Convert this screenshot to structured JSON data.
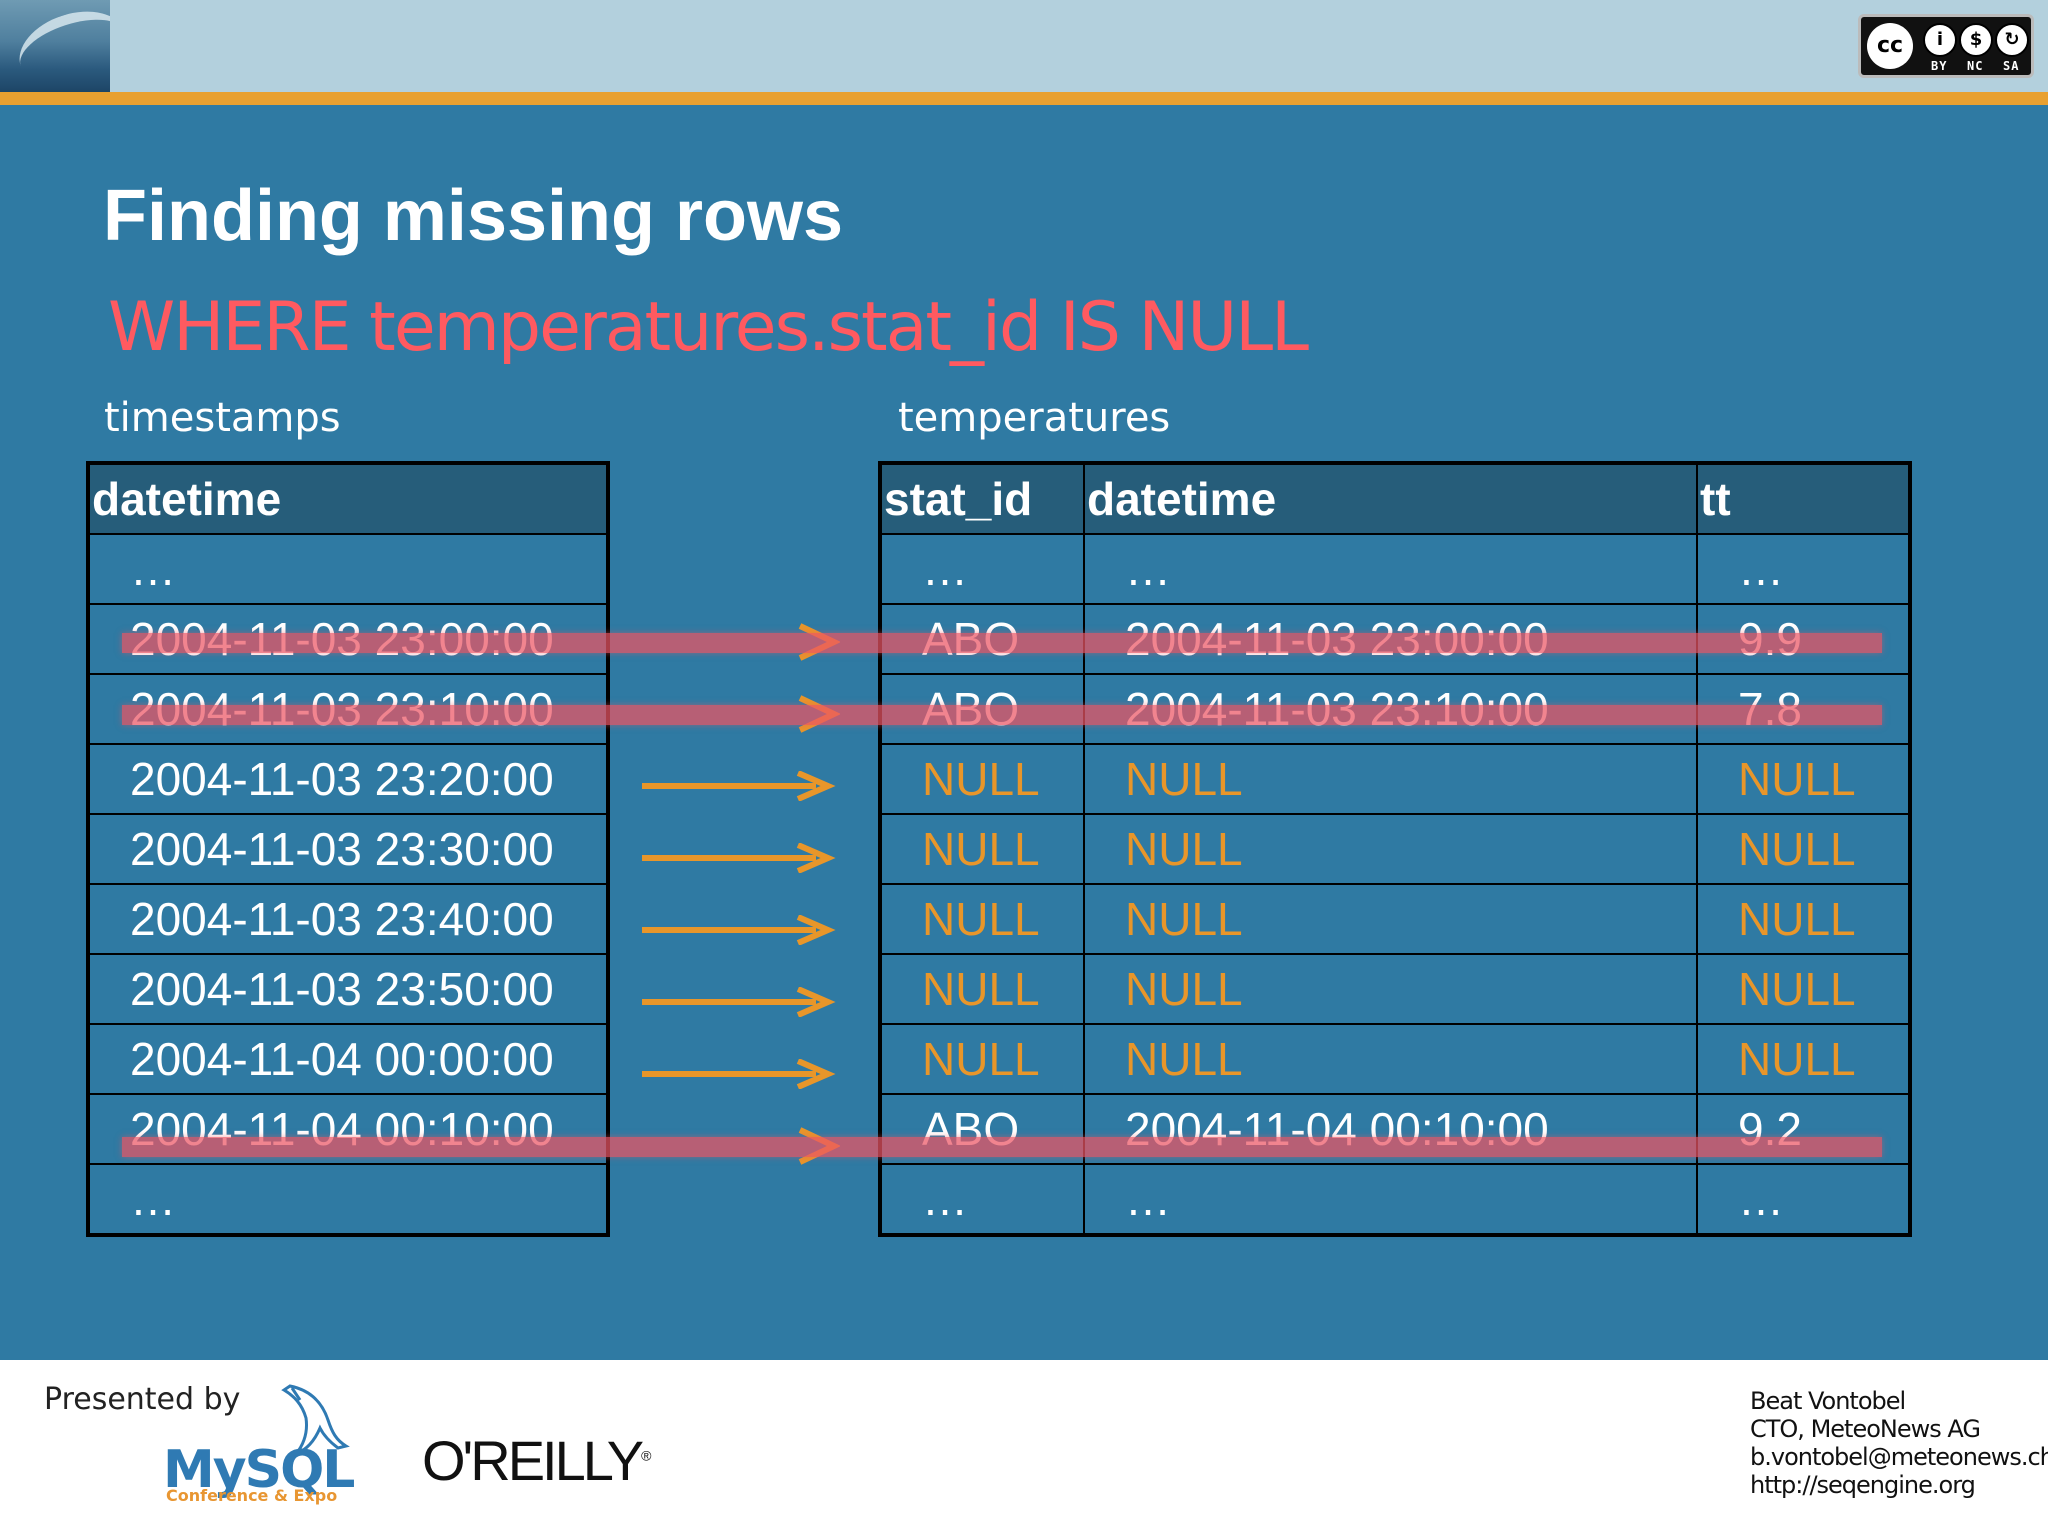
{
  "header": {
    "license_badge": {
      "icon": "cc-by-nc-sa-icon",
      "labels": [
        "BY",
        "NC",
        "SA"
      ]
    },
    "brand_image": "ocean-wave-image",
    "stripe_color": "#e8a030"
  },
  "slide": {
    "title": "Finding missing rows",
    "subtitle": "WHERE temperatures.stat_id IS NULL",
    "subtitle_color": "#ff5a60",
    "background_color": "#2f7aa3"
  },
  "timestamps_table": {
    "caption": "timestamps",
    "columns": [
      "datetime"
    ],
    "rows": [
      [
        "…"
      ],
      [
        "2004-11-03 23:00:00"
      ],
      [
        "2004-11-03 23:10:00"
      ],
      [
        "2004-11-03 23:20:00"
      ],
      [
        "2004-11-03 23:30:00"
      ],
      [
        "2004-11-03 23:40:00"
      ],
      [
        "2004-11-03 23:50:00"
      ],
      [
        "2004-11-04 00:00:00"
      ],
      [
        "2004-11-04 00:10:00"
      ],
      [
        "…"
      ]
    ]
  },
  "temperatures_table": {
    "caption": "temperatures",
    "columns": [
      "stat_id",
      "datetime",
      "tt"
    ],
    "rows": [
      [
        "…",
        "…",
        "…"
      ],
      [
        "ABO",
        "2004-11-03 23:00:00",
        "9.9"
      ],
      [
        "ABO",
        "2004-11-03 23:10:00",
        "7.8"
      ],
      [
        "NULL",
        "NULL",
        "NULL"
      ],
      [
        "NULL",
        "NULL",
        "NULL"
      ],
      [
        "NULL",
        "NULL",
        "NULL"
      ],
      [
        "NULL",
        "NULL",
        "NULL"
      ],
      [
        "NULL",
        "NULL",
        "NULL"
      ],
      [
        "ABO",
        "2004-11-04 00:10:00",
        "9.2"
      ],
      [
        "…",
        "…",
        "…"
      ]
    ],
    "null_color": "#e8962a"
  },
  "highlight": {
    "struck_rows": [
      1,
      2,
      8
    ],
    "arrow_rows": [
      3,
      4,
      5,
      6,
      7
    ],
    "strike_color": "#eb5564",
    "arrow_color": "#e8962a"
  },
  "footer": {
    "presented_by": "Presented by",
    "sponsor_logos": [
      {
        "icon": "mysql-dolphin-logo",
        "wordmark": "MySQL",
        "subtitle": "Conference & Expo"
      },
      {
        "icon": "oreilly-logo",
        "wordmark": "O'REILLY"
      }
    ],
    "presenter": {
      "name": "Beat Vontobel",
      "role": "CTO, MeteoNews AG",
      "email": "b.vontobel@meteonews.ch",
      "url": "http://seqengine.org"
    }
  }
}
